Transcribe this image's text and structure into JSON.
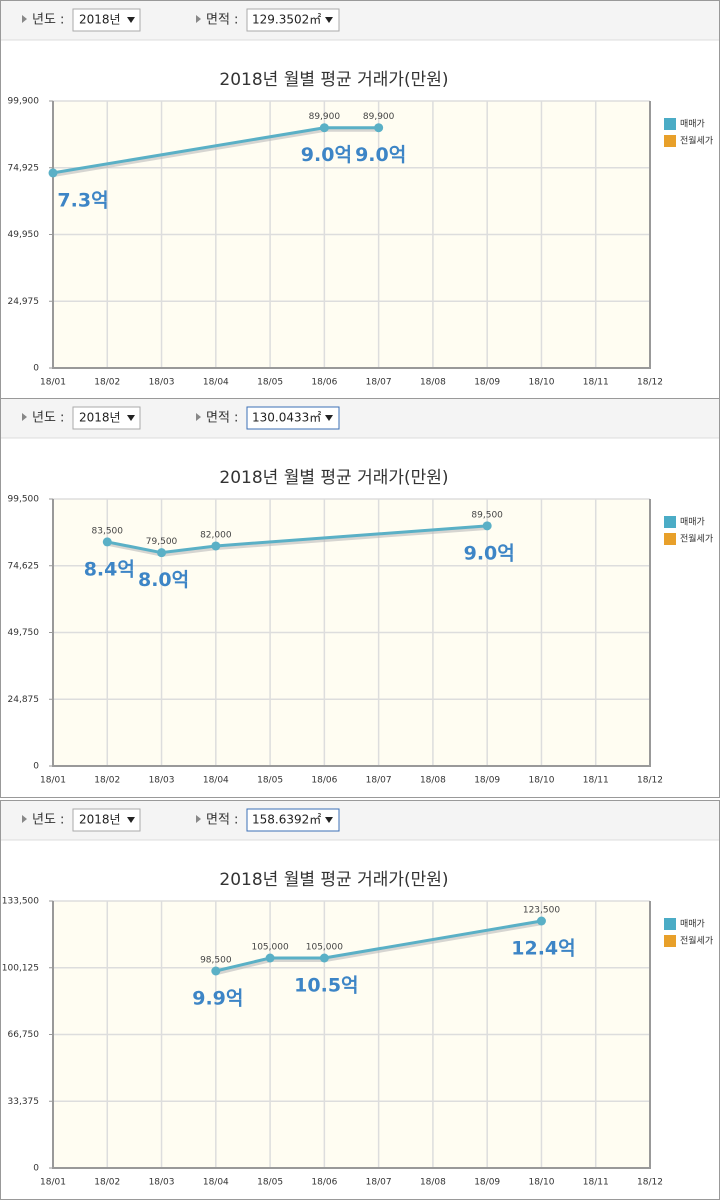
{
  "controls": [
    {
      "year_label": "년도 :",
      "year": "2018년",
      "area_label": "면적 :",
      "area": "129.3502㎡"
    },
    {
      "year_label": "년도 :",
      "year": "2018년",
      "area_label": "면적 :",
      "area": "130.0433㎡"
    },
    {
      "year_label": "년도 :",
      "year": "2018년",
      "area_label": "면적 :",
      "area": "158.6392㎡"
    }
  ],
  "chart_data": [
    {
      "type": "line",
      "title": "2018년 월별 평균 거래가(만원)",
      "categories": [
        "18/01",
        "18/02",
        "18/03",
        "18/04",
        "18/05",
        "18/06",
        "18/07",
        "18/08",
        "18/09",
        "18/10",
        "18/11",
        "18/12"
      ],
      "x": [
        "18/01",
        "18/06",
        "18/07"
      ],
      "values": [
        73000,
        89900,
        89900
      ],
      "value_labels": [
        null,
        "89,900",
        "89,900"
      ],
      "annotations": [
        "7.3억",
        "9.0억",
        "9.0억"
      ],
      "color": "#5ab0c6",
      "annotation_color": "#3d85c6",
      "legend": [
        {
          "name": "매매가",
          "color": "#4bacc6"
        },
        {
          "name": "전월세가",
          "color": "#e8a02a"
        }
      ],
      "ylim": [
        0,
        99900
      ],
      "yticks": [
        0,
        {
          "value": 24975,
          "label": "24,975"
        },
        {
          "value": 49950,
          "label": "49,950"
        },
        {
          "value": 74925,
          "label": "74,925"
        },
        {
          "value": 99900,
          "label": "99,900"
        }
      ],
      "grid": true
    },
    {
      "type": "line",
      "title": "2018년 월별 평균 거래가(만원)",
      "categories": [
        "18/01",
        "18/02",
        "18/03",
        "18/04",
        "18/05",
        "18/06",
        "18/07",
        "18/08",
        "18/09",
        "18/10",
        "18/11",
        "18/12"
      ],
      "x": [
        "18/02",
        "18/03",
        "18/04",
        "18/09"
      ],
      "values": [
        83500,
        79500,
        82000,
        89500
      ],
      "value_labels": [
        "83,500",
        "79,500",
        "82,000",
        "89,500"
      ],
      "annotations": [
        "8.4억",
        "8.0억",
        null,
        "9.0억"
      ],
      "color": "#5ab0c6",
      "annotation_color": "#3d85c6",
      "legend": [
        {
          "name": "매매가",
          "color": "#4bacc6"
        },
        {
          "name": "전월세가",
          "color": "#e8a02a"
        }
      ],
      "ylim": [
        0,
        99500
      ],
      "yticks": [
        0,
        {
          "value": 24875,
          "label": "24,875"
        },
        {
          "value": 49750,
          "label": "49,750"
        },
        {
          "value": 74625,
          "label": "74,625"
        },
        {
          "value": 99500,
          "label": "99,500"
        }
      ],
      "grid": true
    },
    {
      "type": "line",
      "title": "2018년 월별 평균 거래가(만원)",
      "categories": [
        "18/01",
        "18/02",
        "18/03",
        "18/04",
        "18/05",
        "18/06",
        "18/07",
        "18/08",
        "18/09",
        "18/10",
        "18/11",
        "18/12"
      ],
      "x": [
        "18/04",
        "18/05",
        "18/06",
        "18/10"
      ],
      "values": [
        98500,
        105000,
        105000,
        123500
      ],
      "value_labels": [
        "98,500",
        "105,000",
        "105,000",
        "123,500"
      ],
      "annotations": [
        "9.9억",
        null,
        "10.5억",
        "12.4억"
      ],
      "color": "#5ab0c6",
      "annotation_color": "#3d85c6",
      "legend": [
        {
          "name": "매매가",
          "color": "#4bacc6"
        },
        {
          "name": "전월세가",
          "color": "#e8a02a"
        }
      ],
      "ylim": [
        0,
        133500
      ],
      "yticks": [
        0,
        {
          "value": 33375,
          "label": "33,375"
        },
        {
          "value": 66750,
          "label": "66,750"
        },
        {
          "value": 100125,
          "label": "100,125"
        },
        {
          "value": 133500,
          "label": "133,500"
        }
      ],
      "grid": true
    }
  ]
}
